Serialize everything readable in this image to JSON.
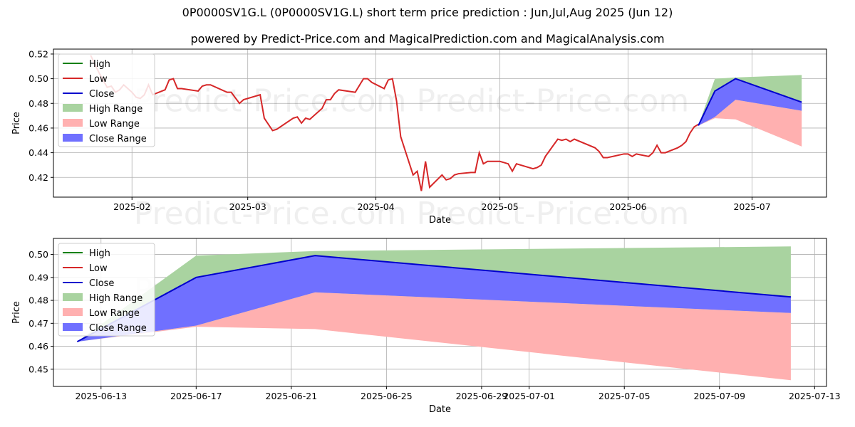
{
  "title": "0P0000SV1G.L (0P0000SV1G.L) short term price prediction : Jun,Jul,Aug 2025 (Jun 12)",
  "subtitle": "powered by Predict-Price.com and MagicalPrediction.com and MagicalAnalysis.com",
  "watermark": "Predict-Price.com",
  "colors": {
    "high": "#008000",
    "low": "#d62728",
    "close": "#0000cd",
    "high_range": "#a9d3a0",
    "low_range": "#ffb0b0",
    "close_range": "#7070ff"
  },
  "legend": [
    "High",
    "Low",
    "Close",
    "High Range",
    "Low Range",
    "Close Range"
  ],
  "chart_data": [
    {
      "type": "line",
      "xlabel": "Date",
      "ylabel": "Price",
      "xlim": [
        "2025-01-13",
        "2025-07-19"
      ],
      "ylim": [
        0.404,
        0.524
      ],
      "grid": true,
      "legend_position": "top-left",
      "x_ticks": [
        "2025-02-01",
        "2025-03-01",
        "2025-04-01",
        "2025-05-01",
        "2025-06-01",
        "2025-07-01"
      ],
      "x_tick_labels": [
        "2025-02",
        "2025-03",
        "2025-04",
        "2025-05",
        "2025-06",
        "2025-07"
      ],
      "y_ticks": [
        0.42,
        0.44,
        0.46,
        0.48,
        0.5,
        0.52
      ],
      "y_tick_labels": [
        "0.42",
        "0.44",
        "0.46",
        "0.48",
        "0.50",
        "0.52"
      ],
      "low_series": [
        [
          "2025-01-22",
          0.519
        ],
        [
          "2025-01-23",
          0.512
        ],
        [
          "2025-01-24",
          0.505
        ],
        [
          "2025-01-25",
          0.499
        ],
        [
          "2025-01-26",
          0.493
        ],
        [
          "2025-01-27",
          0.494
        ],
        [
          "2025-01-28",
          0.489
        ],
        [
          "2025-01-29",
          0.491
        ],
        [
          "2025-01-30",
          0.495
        ],
        [
          "2025-01-31",
          0.492
        ],
        [
          "2025-02-01",
          0.489
        ],
        [
          "2025-02-02",
          0.485
        ],
        [
          "2025-02-03",
          0.484
        ],
        [
          "2025-02-04",
          0.487
        ],
        [
          "2025-02-05",
          0.495
        ],
        [
          "2025-02-06",
          0.487
        ],
        [
          "2025-02-09",
          0.491
        ],
        [
          "2025-02-10",
          0.499
        ],
        [
          "2025-02-11",
          0.5
        ],
        [
          "2025-02-12",
          0.492
        ],
        [
          "2025-02-13",
          0.492
        ],
        [
          "2025-02-17",
          0.49
        ],
        [
          "2025-02-18",
          0.494
        ],
        [
          "2025-02-19",
          0.495
        ],
        [
          "2025-02-20",
          0.495
        ],
        [
          "2025-02-24",
          0.489
        ],
        [
          "2025-02-25",
          0.489
        ],
        [
          "2025-02-27",
          0.48
        ],
        [
          "2025-02-28",
          0.483
        ],
        [
          "2025-03-04",
          0.487
        ],
        [
          "2025-03-05",
          0.468
        ],
        [
          "2025-03-07",
          0.458
        ],
        [
          "2025-03-08",
          0.459
        ],
        [
          "2025-03-12",
          0.468
        ],
        [
          "2025-03-13",
          0.469
        ],
        [
          "2025-03-14",
          0.464
        ],
        [
          "2025-03-15",
          0.468
        ],
        [
          "2025-03-16",
          0.467
        ],
        [
          "2025-03-19",
          0.476
        ],
        [
          "2025-03-20",
          0.483
        ],
        [
          "2025-03-21",
          0.483
        ],
        [
          "2025-03-22",
          0.488
        ],
        [
          "2025-03-23",
          0.491
        ],
        [
          "2025-03-27",
          0.489
        ],
        [
          "2025-03-29",
          0.5
        ],
        [
          "2025-03-30",
          0.5
        ],
        [
          "2025-03-31",
          0.497
        ],
        [
          "2025-04-03",
          0.492
        ],
        [
          "2025-04-04",
          0.499
        ],
        [
          "2025-04-05",
          0.5
        ],
        [
          "2025-04-06",
          0.482
        ],
        [
          "2025-04-07",
          0.453
        ],
        [
          "2025-04-10",
          0.422
        ],
        [
          "2025-04-11",
          0.425
        ],
        [
          "2025-04-12",
          0.409
        ],
        [
          "2025-04-13",
          0.433
        ],
        [
          "2025-04-14",
          0.412
        ],
        [
          "2025-04-17",
          0.422
        ],
        [
          "2025-04-18",
          0.418
        ],
        [
          "2025-04-19",
          0.419
        ],
        [
          "2025-04-20",
          0.422
        ],
        [
          "2025-04-21",
          0.423
        ],
        [
          "2025-04-24",
          0.424
        ],
        [
          "2025-04-25",
          0.424
        ],
        [
          "2025-04-26",
          0.44
        ],
        [
          "2025-04-27",
          0.431
        ],
        [
          "2025-04-28",
          0.433
        ],
        [
          "2025-05-01",
          0.433
        ],
        [
          "2025-05-02",
          0.432
        ],
        [
          "2025-05-03",
          0.431
        ],
        [
          "2025-05-04",
          0.425
        ],
        [
          "2025-05-05",
          0.431
        ],
        [
          "2025-05-09",
          0.427
        ],
        [
          "2025-05-10",
          0.428
        ],
        [
          "2025-05-11",
          0.43
        ],
        [
          "2025-05-12",
          0.437
        ],
        [
          "2025-05-15",
          0.451
        ],
        [
          "2025-05-16",
          0.45
        ],
        [
          "2025-05-17",
          0.451
        ],
        [
          "2025-05-18",
          0.449
        ],
        [
          "2025-05-19",
          0.451
        ],
        [
          "2025-05-24",
          0.444
        ],
        [
          "2025-05-25",
          0.441
        ],
        [
          "2025-05-26",
          0.436
        ],
        [
          "2025-05-27",
          0.436
        ],
        [
          "2025-05-31",
          0.439
        ],
        [
          "2025-06-01",
          0.439
        ],
        [
          "2025-06-02",
          0.437
        ],
        [
          "2025-06-03",
          0.439
        ],
        [
          "2025-06-06",
          0.437
        ],
        [
          "2025-06-07",
          0.44
        ],
        [
          "2025-06-08",
          0.446
        ],
        [
          "2025-06-09",
          0.44
        ],
        [
          "2025-06-10",
          0.44
        ],
        [
          "2025-06-13",
          0.444
        ],
        [
          "2025-06-14",
          0.446
        ],
        [
          "2025-06-15",
          0.449
        ],
        [
          "2025-06-16",
          0.456
        ],
        [
          "2025-06-17",
          0.461
        ],
        [
          "2025-06-18",
          0.463
        ]
      ],
      "forecast_dates": [
        "2025-06-18",
        "2025-06-22",
        "2025-06-27",
        "2025-07-13"
      ],
      "close_forecast": [
        0.462,
        0.49,
        0.5,
        0.481
      ],
      "high_range": {
        "upper": [
          0.462,
          0.5,
          0.501,
          0.503
        ],
        "lower": [
          0.462,
          0.469,
          0.483,
          0.474
        ]
      },
      "low_range": {
        "upper": [
          0.462,
          0.469,
          0.483,
          0.474
        ],
        "lower": [
          0.462,
          0.468,
          0.467,
          0.445
        ]
      },
      "close_range": {
        "upper": [
          0.462,
          0.49,
          0.5,
          0.481
        ],
        "lower": [
          0.462,
          0.469,
          0.483,
          0.474
        ]
      }
    },
    {
      "type": "line",
      "xlabel": "Date",
      "ylabel": "Price",
      "xlim": [
        "2025-06-11.0",
        "2025-07-13.5"
      ],
      "ylim": [
        0.4425,
        0.507
      ],
      "grid": true,
      "legend_position": "top-left",
      "x_ticks": [
        "2025-06-13",
        "2025-06-17",
        "2025-06-21",
        "2025-06-25",
        "2025-06-29",
        "2025-07-01",
        "2025-07-05",
        "2025-07-09",
        "2025-07-13"
      ],
      "x_tick_labels": [
        "2025-06-13",
        "2025-06-17",
        "2025-06-21",
        "2025-06-25",
        "2025-06-29",
        "2025-07-01",
        "2025-07-05",
        "2025-07-09",
        "2025-07-13"
      ],
      "y_ticks": [
        0.45,
        0.46,
        0.47,
        0.48,
        0.49,
        0.5
      ],
      "y_tick_labels": [
        "0.45",
        "0.46",
        "0.47",
        "0.48",
        "0.49",
        "0.50"
      ],
      "forecast_dates": [
        "2025-06-12",
        "2025-06-17",
        "2025-06-22",
        "2025-07-12"
      ],
      "close_forecast": [
        0.462,
        0.49,
        0.4995,
        0.4815
      ],
      "high_range": {
        "upper": [
          0.462,
          0.4995,
          0.5015,
          0.5035
        ],
        "lower": [
          0.462,
          0.469,
          0.4835,
          0.4745
        ]
      },
      "low_range": {
        "upper": [
          0.462,
          0.469,
          0.4835,
          0.4745
        ],
        "lower": [
          0.462,
          0.4685,
          0.4675,
          0.4452
        ]
      },
      "close_range": {
        "upper": [
          0.462,
          0.49,
          0.4995,
          0.4815
        ],
        "lower": [
          0.462,
          0.469,
          0.4835,
          0.4745
        ]
      }
    }
  ]
}
